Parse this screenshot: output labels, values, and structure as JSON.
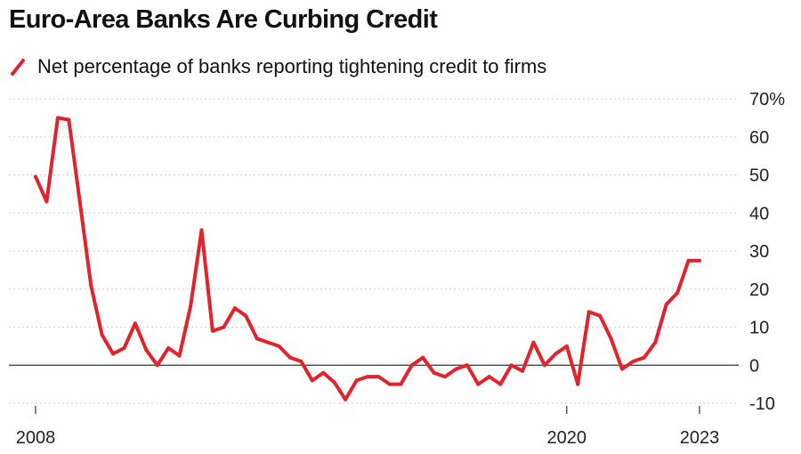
{
  "chart_data": {
    "type": "line",
    "title": "Euro-Area Banks Are Curbing Credit",
    "xlabel": "",
    "ylabel": "",
    "y_ticks": [
      "70%",
      "60",
      "50",
      "40",
      "30",
      "20",
      "10",
      "0",
      "-10"
    ],
    "y_tick_values": [
      70,
      60,
      50,
      40,
      30,
      20,
      10,
      0,
      -10
    ],
    "ylim": [
      -10,
      70
    ],
    "x_tick_labels": [
      "2008",
      "2020",
      "2023"
    ],
    "x_tick_values": [
      2008,
      2020,
      2023
    ],
    "xlim": [
      2008,
      2023
    ],
    "grid": true,
    "legend_position": "top-left",
    "series": [
      {
        "name": "Net percentage of banks reporting tightening credit to firms",
        "color": "#e3232b",
        "x": [
          2008.0,
          2008.25,
          2008.5,
          2008.75,
          2009.0,
          2009.25,
          2009.5,
          2009.75,
          2010.0,
          2010.25,
          2010.5,
          2010.75,
          2011.0,
          2011.25,
          2011.5,
          2011.75,
          2012.0,
          2012.25,
          2012.5,
          2012.75,
          2013.0,
          2013.25,
          2013.5,
          2013.75,
          2014.0,
          2014.25,
          2014.5,
          2014.75,
          2015.0,
          2015.25,
          2015.5,
          2015.75,
          2016.0,
          2016.25,
          2016.5,
          2016.75,
          2017.0,
          2017.25,
          2017.5,
          2017.75,
          2018.0,
          2018.25,
          2018.5,
          2018.75,
          2019.0,
          2019.25,
          2019.5,
          2019.75,
          2020.0,
          2020.25,
          2020.5,
          2020.75,
          2021.0,
          2021.25,
          2021.5,
          2021.75,
          2022.0,
          2022.25,
          2022.5,
          2022.75,
          2023.0
        ],
        "values": [
          49.5,
          43,
          65,
          64.5,
          43,
          21,
          8,
          3,
          4.5,
          11,
          4,
          0,
          4.5,
          2.5,
          15.5,
          35.5,
          9,
          10,
          15,
          13,
          7,
          6,
          5,
          2,
          1,
          -4,
          -2,
          -4.5,
          -9,
          -4,
          -3,
          -3,
          -5,
          -5,
          0,
          2,
          -2,
          -3,
          -1,
          0,
          -5,
          -3,
          -5,
          0,
          -1.5,
          6,
          0,
          3,
          5,
          -5,
          14,
          13,
          7,
          -1,
          1,
          2,
          6,
          16,
          19,
          27.5,
          27.5
        ]
      }
    ]
  }
}
